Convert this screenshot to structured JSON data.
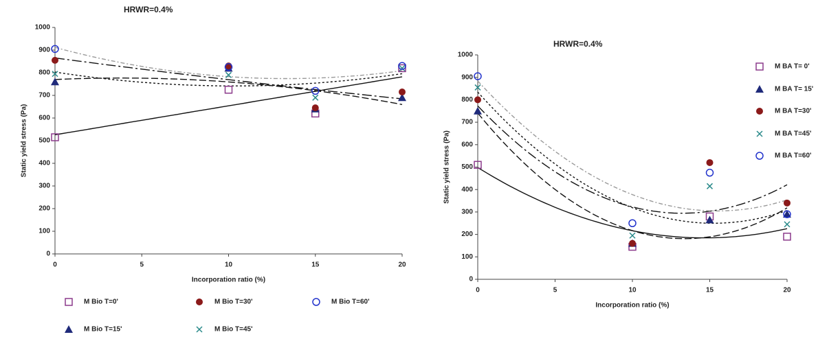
{
  "chart_data": [
    {
      "type": "scatter",
      "title": "HRWR=0.4%",
      "x_label": "Incorporation ratio (%)",
      "y_label": "Static yield stress (Pa)",
      "x": [
        0,
        10,
        15,
        20
      ],
      "xlim": [
        0,
        20
      ],
      "xticks": [
        0,
        5,
        10,
        15,
        20
      ],
      "ylim": [
        0,
        1000
      ],
      "yticks": [
        0,
        100,
        200,
        300,
        400,
        500,
        600,
        700,
        800,
        900,
        1000
      ],
      "legend": "bottom",
      "series": [
        {
          "name": "M Bio T=0'",
          "color": "#8b3a8b",
          "marker": "square-open",
          "trendline": "linear",
          "values": [
            515,
            725,
            620,
            820
          ]
        },
        {
          "name": "M Bio T=15'",
          "color": "#1f2a7a",
          "marker": "triangle",
          "trendline": "poly2",
          "values": [
            760,
            820,
            640,
            690
          ]
        },
        {
          "name": "M Bio T=30'",
          "color": "#8b1a1a",
          "marker": "circle",
          "trendline": "poly2",
          "values": [
            855,
            830,
            645,
            715
          ]
        },
        {
          "name": "M Bio T=45'",
          "color": "#2a8a8a",
          "marker": "x",
          "trendline": "poly2",
          "values": [
            795,
            790,
            690,
            820
          ]
        },
        {
          "name": "M Bio T=60'",
          "color": "#2233cc",
          "marker": "circle-open",
          "trendline": "poly2",
          "values": [
            905,
            825,
            720,
            830
          ]
        }
      ]
    },
    {
      "type": "scatter",
      "title": "HRWR=0.4%",
      "x_label": "Incorporation ratio (%)",
      "y_label": "Static yield stress (Pa)",
      "x": [
        0,
        10,
        15,
        20
      ],
      "xlim": [
        0,
        20
      ],
      "xticks": [
        0,
        5,
        10,
        15,
        20
      ],
      "ylim": [
        0,
        1000
      ],
      "yticks": [
        0,
        100,
        200,
        300,
        400,
        500,
        600,
        700,
        800,
        900,
        1000
      ],
      "legend": "right",
      "series": [
        {
          "name": "M BA T= 0'",
          "color": "#8b3a8b",
          "marker": "square-open",
          "trendline": "poly2",
          "values": [
            510,
            145,
            280,
            190
          ]
        },
        {
          "name": "M BA T= 15'",
          "color": "#1f2a7a",
          "marker": "triangle",
          "trendline": "poly2",
          "values": [
            750,
            160,
            265,
            290
          ]
        },
        {
          "name": "M BA T=30'",
          "color": "#8b1a1a",
          "marker": "circle",
          "trendline": "poly2",
          "values": [
            800,
            160,
            520,
            340
          ]
        },
        {
          "name": "M BA T=45'",
          "color": "#2a8a8a",
          "marker": "x",
          "trendline": "poly2",
          "values": [
            855,
            195,
            415,
            245
          ]
        },
        {
          "name": "M BA T=60'",
          "color": "#2233cc",
          "marker": "circle-open",
          "trendline": "poly2",
          "values": [
            905,
            250,
            475,
            290
          ]
        }
      ]
    }
  ]
}
